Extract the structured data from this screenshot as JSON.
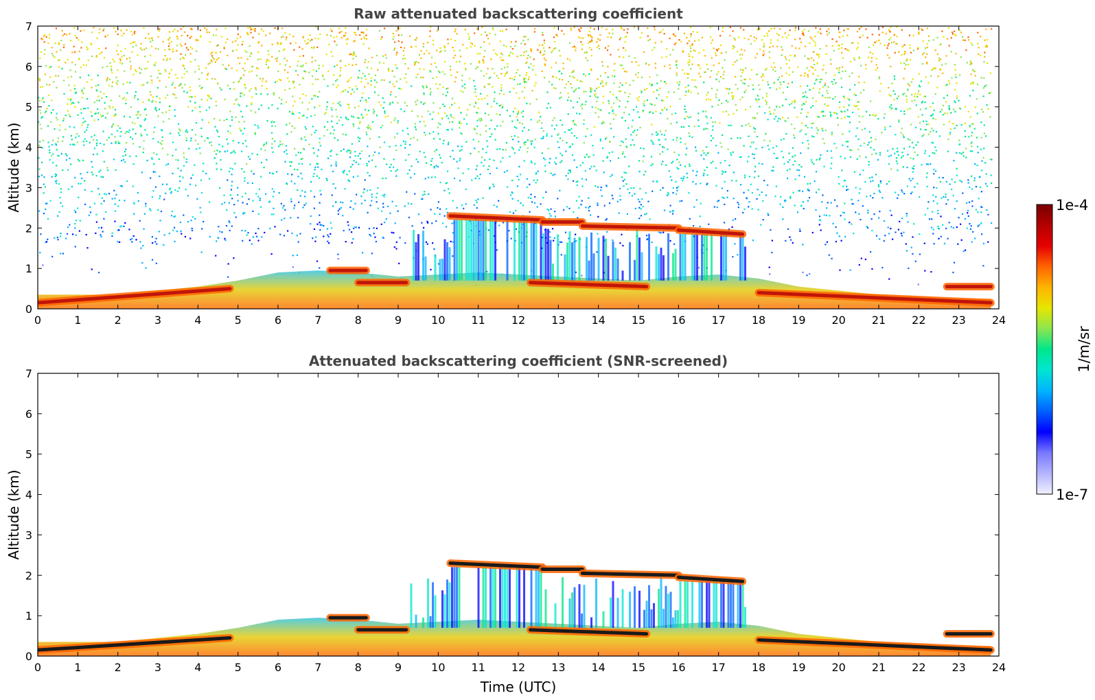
{
  "colors": {
    "colormap": [
      "#f0f0ff",
      "#b4b4ff",
      "#7878ff",
      "#0000ff",
      "#0060ff",
      "#00b4ff",
      "#00e6d2",
      "#00e68c",
      "#8ce650",
      "#e6e600",
      "#ffb400",
      "#ff6400",
      "#e60000",
      "#b40000",
      "#780000"
    ],
    "noise_top": "#f0c040",
    "boundary_layer": "#ff9a2a",
    "cloud_core": "#c0150a",
    "screened_saturated": "#1a1a1a",
    "frame": "#000000"
  },
  "colorbar": {
    "max_label": "1e-4",
    "min_label": "1e-7",
    "unit_label": "1/m/sr",
    "scale": "log",
    "range": [
      1e-07,
      0.0001
    ]
  },
  "chart_data": [
    {
      "type": "heatmap",
      "title": "Raw attenuated backscattering coefficient",
      "xlabel": "",
      "ylabel": "Altitude (km)",
      "xlim": [
        0,
        24
      ],
      "ylim": [
        0,
        7
      ],
      "x_ticks": [
        "0",
        "1",
        "2",
        "3",
        "4",
        "5",
        "6",
        "7",
        "8",
        "9",
        "10",
        "11",
        "12",
        "13",
        "14",
        "15",
        "16",
        "17",
        "18",
        "19",
        "20",
        "21",
        "22",
        "23",
        "24"
      ],
      "y_ticks": [
        "0",
        "1",
        "2",
        "3",
        "4",
        "5",
        "6",
        "7"
      ],
      "colorbar_unit": "1/m/sr",
      "color_scale": "log",
      "value_range": [
        1e-07,
        0.0001
      ],
      "boundary_layer_top_km": [
        [
          0,
          0.35
        ],
        [
          2,
          0.35
        ],
        [
          3,
          0.45
        ],
        [
          4,
          0.55
        ],
        [
          5,
          0.7
        ],
        [
          6,
          0.9
        ],
        [
          7,
          0.95
        ],
        [
          8,
          0.9
        ],
        [
          9,
          0.8
        ],
        [
          10,
          0.85
        ],
        [
          11,
          0.9
        ],
        [
          12,
          0.85
        ],
        [
          13,
          0.8
        ],
        [
          14,
          0.75
        ],
        [
          15,
          0.7
        ],
        [
          16,
          0.8
        ],
        [
          17,
          0.85
        ],
        [
          18,
          0.75
        ],
        [
          19,
          0.55
        ],
        [
          20,
          0.45
        ],
        [
          21,
          0.35
        ],
        [
          22,
          0.3
        ],
        [
          23,
          0.25
        ],
        [
          23.8,
          0.25
        ]
      ],
      "cloud_layers": [
        {
          "t_start": 0.0,
          "t_end": 4.8,
          "alt_start_km": 0.15,
          "alt_end_km": 0.5
        },
        {
          "t_start": 7.3,
          "t_end": 8.2,
          "alt_start_km": 0.95,
          "alt_end_km": 0.95
        },
        {
          "t_start": 8.0,
          "t_end": 9.2,
          "alt_start_km": 0.65,
          "alt_end_km": 0.65
        },
        {
          "t_start": 10.3,
          "t_end": 12.6,
          "alt_start_km": 2.3,
          "alt_end_km": 2.2
        },
        {
          "t_start": 12.6,
          "t_end": 13.6,
          "alt_start_km": 2.15,
          "alt_end_km": 2.15
        },
        {
          "t_start": 13.6,
          "t_end": 16.0,
          "alt_start_km": 2.05,
          "alt_end_km": 2.0
        },
        {
          "t_start": 16.0,
          "t_end": 17.6,
          "alt_start_km": 1.95,
          "alt_end_km": 1.85
        },
        {
          "t_start": 12.3,
          "t_end": 15.2,
          "alt_start_km": 0.65,
          "alt_end_km": 0.55
        },
        {
          "t_start": 18.0,
          "t_end": 23.8,
          "alt_start_km": 0.4,
          "alt_end_km": 0.15
        },
        {
          "t_start": 22.7,
          "t_end": 23.8,
          "alt_start_km": 0.55,
          "alt_end_km": 0.55
        }
      ],
      "noise_field": true,
      "grid": false
    },
    {
      "type": "heatmap",
      "title": "Attenuated backscattering coefficient (SNR-screened)",
      "xlabel": "Time (UTC)",
      "ylabel": "Altitude (km)",
      "xlim": [
        0,
        24
      ],
      "ylim": [
        0,
        7
      ],
      "x_ticks": [
        "0",
        "1",
        "2",
        "3",
        "4",
        "5",
        "6",
        "7",
        "8",
        "9",
        "10",
        "11",
        "12",
        "13",
        "14",
        "15",
        "16",
        "17",
        "18",
        "19",
        "20",
        "21",
        "22",
        "23",
        "24"
      ],
      "y_ticks": [
        "0",
        "1",
        "2",
        "3",
        "4",
        "5",
        "6",
        "7"
      ],
      "colorbar_unit": "1/m/sr",
      "color_scale": "log",
      "value_range": [
        1e-07,
        0.0001
      ],
      "boundary_layer_top_km": [
        [
          0,
          0.35
        ],
        [
          2,
          0.35
        ],
        [
          3,
          0.45
        ],
        [
          4,
          0.55
        ],
        [
          5,
          0.7
        ],
        [
          6,
          0.9
        ],
        [
          7,
          0.95
        ],
        [
          8,
          0.9
        ],
        [
          9,
          0.8
        ],
        [
          10,
          0.85
        ],
        [
          11,
          0.9
        ],
        [
          12,
          0.85
        ],
        [
          13,
          0.8
        ],
        [
          14,
          0.75
        ],
        [
          15,
          0.7
        ],
        [
          16,
          0.8
        ],
        [
          17,
          0.85
        ],
        [
          18,
          0.75
        ],
        [
          19,
          0.55
        ],
        [
          20,
          0.45
        ],
        [
          21,
          0.35
        ],
        [
          22,
          0.3
        ],
        [
          23,
          0.25
        ],
        [
          23.8,
          0.25
        ]
      ],
      "cloud_layers": [
        {
          "t_start": 0.0,
          "t_end": 4.8,
          "alt_start_km": 0.15,
          "alt_end_km": 0.45
        },
        {
          "t_start": 7.3,
          "t_end": 8.2,
          "alt_start_km": 0.95,
          "alt_end_km": 0.95
        },
        {
          "t_start": 8.0,
          "t_end": 9.2,
          "alt_start_km": 0.65,
          "alt_end_km": 0.65
        },
        {
          "t_start": 10.3,
          "t_end": 12.6,
          "alt_start_km": 2.3,
          "alt_end_km": 2.2
        },
        {
          "t_start": 12.6,
          "t_end": 13.6,
          "alt_start_km": 2.15,
          "alt_end_km": 2.15
        },
        {
          "t_start": 13.6,
          "t_end": 16.0,
          "alt_start_km": 2.05,
          "alt_end_km": 2.0
        },
        {
          "t_start": 16.0,
          "t_end": 17.6,
          "alt_start_km": 1.95,
          "alt_end_km": 1.85
        },
        {
          "t_start": 12.3,
          "t_end": 15.2,
          "alt_start_km": 0.65,
          "alt_end_km": 0.55
        },
        {
          "t_start": 18.0,
          "t_end": 23.8,
          "alt_start_km": 0.4,
          "alt_end_km": 0.15
        },
        {
          "t_start": 22.7,
          "t_end": 23.8,
          "alt_start_km": 0.55,
          "alt_end_km": 0.55
        }
      ],
      "noise_field": false,
      "grid": false
    }
  ]
}
